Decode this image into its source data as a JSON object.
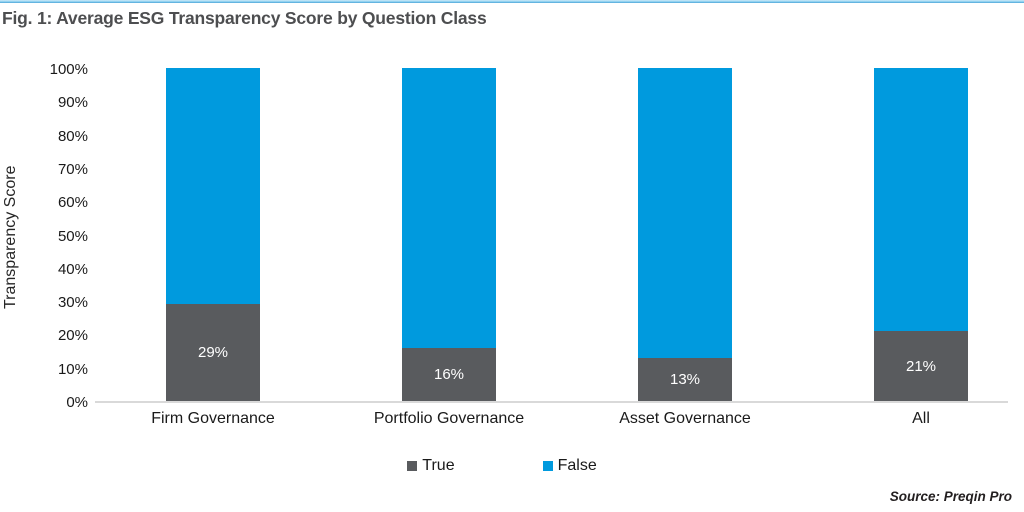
{
  "header": {
    "title": "Fig. 1: Average ESG Transparency Score by Question Class"
  },
  "chart_data": {
    "type": "bar",
    "stacked": true,
    "stack_total": 100,
    "categories": [
      "Firm Governance",
      "Portfolio Governance",
      "Asset Governance",
      "All"
    ],
    "series": [
      {
        "name": "True",
        "color": "#595b5e",
        "values": [
          29,
          16,
          13,
          21
        ],
        "labels": [
          "29%",
          "16%",
          "13%",
          "21%"
        ]
      },
      {
        "name": "False",
        "color": "#009ade",
        "values": [
          71,
          84,
          87,
          79
        ],
        "labels": null
      }
    ],
    "title": "Fig. 1: Average ESG Transparency Score by Question Class",
    "xlabel": "",
    "ylabel": "Transparency Score",
    "ylim": [
      0,
      100
    ],
    "ytick_step": 10,
    "ytick_labels": [
      "0%",
      "10%",
      "20%",
      "30%",
      "40%",
      "50%",
      "60%",
      "70%",
      "80%",
      "90%",
      "100%"
    ],
    "grid": false,
    "legend_position": "bottom"
  },
  "source": {
    "text": "Source: Preqin Pro"
  },
  "colors": {
    "accent_blue": "#009ade",
    "series_gray": "#595b5e",
    "axis_line": "#d9d9d9",
    "title_text": "#4d4e50",
    "top_rule_blue": "#8ed1f0"
  }
}
